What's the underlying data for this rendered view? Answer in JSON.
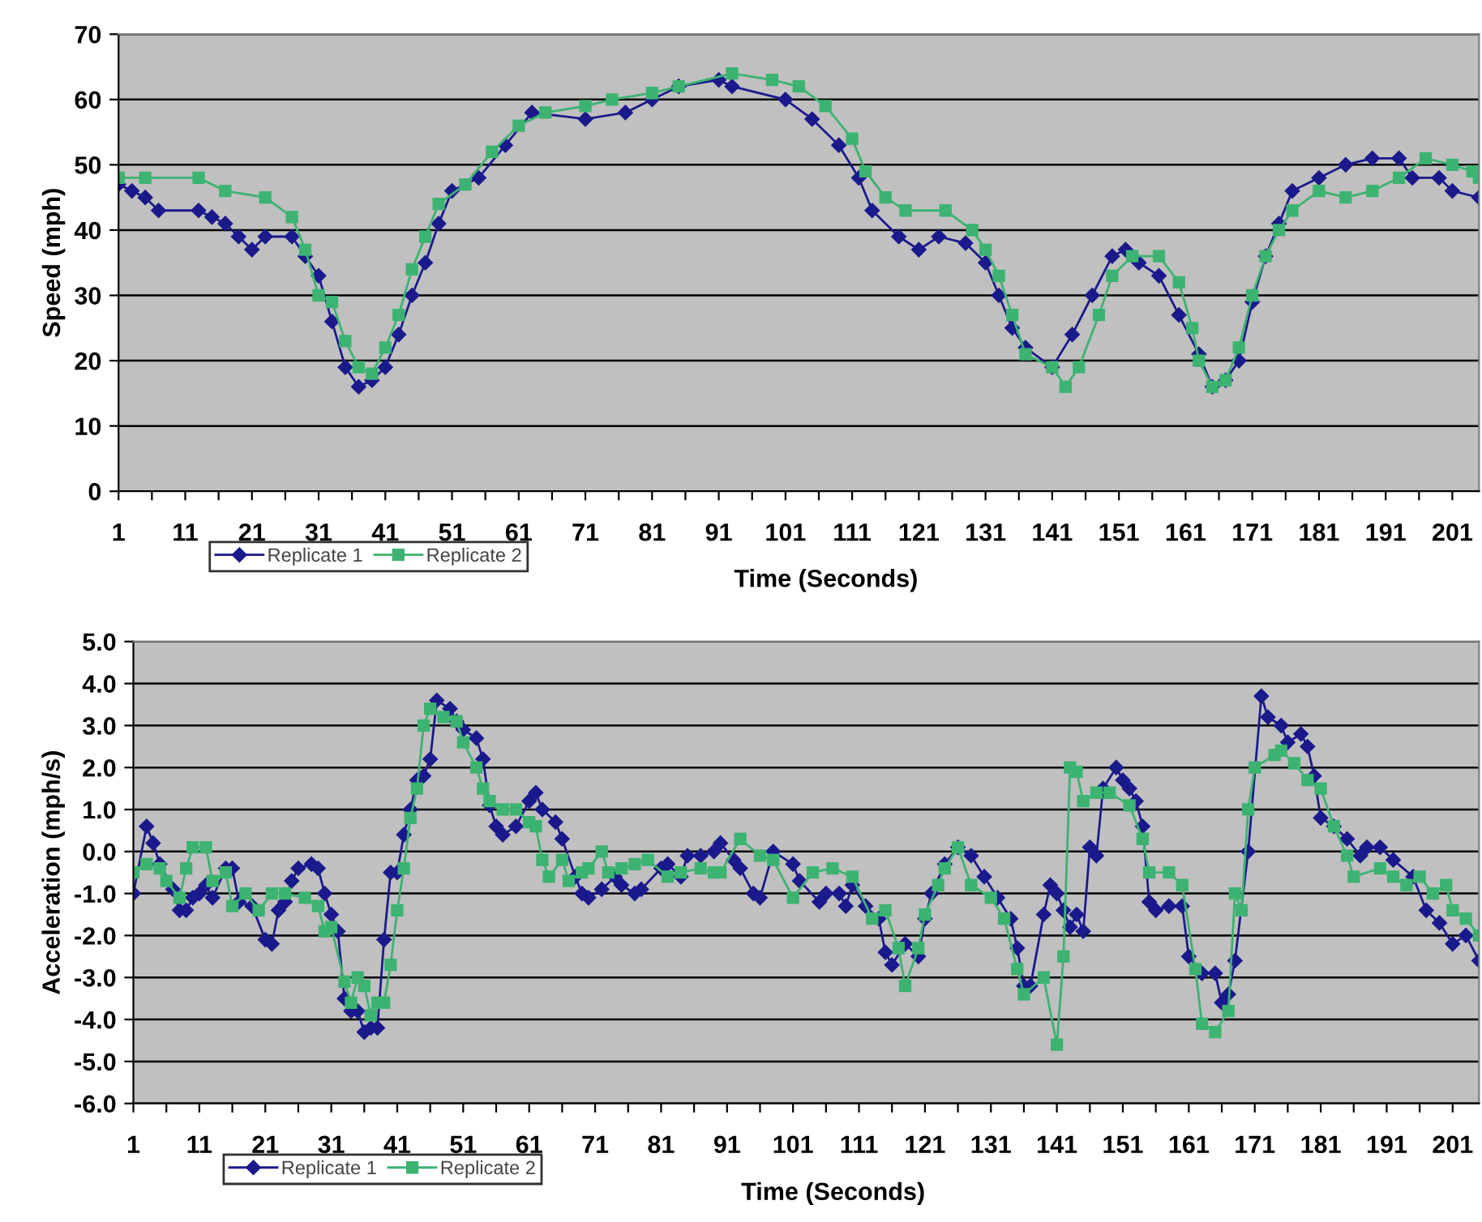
{
  "chart_data": [
    {
      "type": "line",
      "xlabel": "Time (Seconds)",
      "ylabel": "Speed (mph)",
      "xlim": [
        1,
        205
      ],
      "xticks": [
        1,
        {
          "value": 6,
          "label": null
        },
        11,
        {
          "value": 16,
          "label": null
        },
        21,
        {
          "value": 26,
          "label": null
        },
        31,
        {
          "value": 36,
          "label": null
        },
        41,
        {
          "value": 46,
          "label": null
        },
        51,
        {
          "value": 56,
          "label": null
        },
        61,
        {
          "value": 66,
          "label": null
        },
        71,
        {
          "value": 76,
          "label": null
        },
        81,
        {
          "value": 86,
          "label": null
        },
        91,
        {
          "value": 96,
          "label": null
        },
        101,
        {
          "value": 106,
          "label": null
        },
        111,
        {
          "value": 116,
          "label": null
        },
        121,
        {
          "value": 126,
          "label": null
        },
        131,
        {
          "value": 136,
          "label": null
        },
        141,
        {
          "value": 146,
          "label": null
        },
        151,
        {
          "value": 156,
          "label": null
        },
        161,
        {
          "value": 166,
          "label": null
        },
        171,
        {
          "value": 176,
          "label": null
        },
        181,
        {
          "value": 186,
          "label": null
        },
        191,
        {
          "value": 196,
          "label": null
        },
        201
      ],
      "ylim": [
        0,
        70
      ],
      "yticks": [
        0,
        10,
        20,
        30,
        40,
        50,
        60,
        70
      ],
      "grid": "y",
      "legend": "bottom left",
      "series": [
        {
          "name": "Replicate 1",
          "color": "#1a1a8c",
          "marker": "diamond",
          "x": [
            1,
            3,
            5,
            7,
            13,
            15,
            17,
            19,
            21,
            23,
            27,
            29,
            31,
            33,
            35,
            37,
            39,
            41,
            43,
            45,
            47,
            49,
            51,
            55,
            59,
            63,
            71,
            77,
            81,
            85,
            91,
            93,
            101,
            105,
            109,
            112,
            114,
            118,
            121,
            124,
            128,
            131,
            133,
            135,
            137,
            141,
            144,
            147,
            150,
            152,
            154,
            157,
            160,
            163,
            165,
            167,
            169,
            171,
            173,
            175,
            177,
            181,
            185,
            189,
            193,
            195,
            199,
            201,
            205
          ],
          "values": [
            47,
            46,
            45,
            43,
            43,
            42,
            41,
            39,
            37,
            39,
            39,
            36,
            33,
            26,
            19,
            16,
            17,
            19,
            24,
            30,
            35,
            41,
            46,
            48,
            53,
            58,
            57,
            58,
            60,
            62,
            63,
            62,
            60,
            57,
            53,
            48,
            43,
            39,
            37,
            39,
            38,
            35,
            30,
            25,
            22,
            19,
            24,
            30,
            36,
            37,
            35,
            33,
            27,
            21,
            16,
            17,
            20,
            29,
            36,
            41,
            46,
            48,
            50,
            51,
            51,
            48,
            48,
            46,
            45
          ]
        },
        {
          "name": "Replicate 2",
          "color": "#3cb371",
          "marker": "square",
          "x": [
            1,
            5,
            13,
            17,
            23,
            27,
            29,
            31,
            33,
            35,
            37,
            39,
            41,
            43,
            45,
            47,
            49,
            53,
            57,
            61,
            65,
            71,
            75,
            81,
            85,
            93,
            99,
            103,
            107,
            111,
            113,
            116,
            119,
            125,
            129,
            131,
            133,
            135,
            137,
            141,
            143,
            145,
            148,
            150,
            153,
            157,
            160,
            162,
            163,
            165,
            167,
            169,
            171,
            173,
            175,
            177,
            181,
            185,
            189,
            193,
            197,
            201,
            204,
            205
          ],
          "values": [
            48,
            48,
            48,
            46,
            45,
            42,
            37,
            30,
            29,
            23,
            19,
            18,
            22,
            27,
            34,
            39,
            44,
            47,
            52,
            56,
            58,
            59,
            60,
            61,
            62,
            64,
            63,
            62,
            59,
            54,
            49,
            45,
            43,
            43,
            40,
            37,
            33,
            27,
            21,
            19,
            16,
            19,
            27,
            33,
            36,
            36,
            32,
            25,
            20,
            16,
            17,
            22,
            30,
            36,
            40,
            43,
            46,
            45,
            46,
            48,
            51,
            50,
            49,
            48
          ]
        }
      ]
    },
    {
      "type": "line",
      "xlabel": "Time (Seconds)",
      "ylabel": "Acceleration (mph/s)",
      "xlim": [
        1,
        205
      ],
      "xticks": [
        1,
        {
          "value": 6,
          "label": null
        },
        11,
        {
          "value": 16,
          "label": null
        },
        21,
        {
          "value": 26,
          "label": null
        },
        31,
        {
          "value": 36,
          "label": null
        },
        41,
        {
          "value": 46,
          "label": null
        },
        51,
        {
          "value": 56,
          "label": null
        },
        61,
        {
          "value": 66,
          "label": null
        },
        71,
        {
          "value": 76,
          "label": null
        },
        81,
        {
          "value": 86,
          "label": null
        },
        91,
        {
          "value": 96,
          "label": null
        },
        101,
        {
          "value": 106,
          "label": null
        },
        111,
        {
          "value": 116,
          "label": null
        },
        121,
        {
          "value": 126,
          "label": null
        },
        131,
        {
          "value": 136,
          "label": null
        },
        141,
        {
          "value": 146,
          "label": null
        },
        151,
        {
          "value": 156,
          "label": null
        },
        161,
        {
          "value": 166,
          "label": null
        },
        171,
        {
          "value": 176,
          "label": null
        },
        181,
        {
          "value": 186,
          "label": null
        },
        191,
        {
          "value": 196,
          "label": null
        },
        201
      ],
      "ylim": [
        -6,
        5
      ],
      "yticks": [
        {
          "value": -6,
          "label": "-6.0"
        },
        {
          "value": -5,
          "label": "-5.0"
        },
        {
          "value": -4,
          "label": "-4.0"
        },
        {
          "value": -3,
          "label": "-3.0"
        },
        {
          "value": -2,
          "label": "-2.0"
        },
        {
          "value": -1,
          "label": "-1.0"
        },
        {
          "value": 0,
          "label": "0.0"
        },
        {
          "value": 1,
          "label": "1.0"
        },
        {
          "value": 2,
          "label": "2.0"
        },
        {
          "value": 3,
          "label": "3.0"
        },
        {
          "value": 4,
          "label": "4.0"
        },
        {
          "value": 5,
          "label": "5.0"
        }
      ],
      "grid": "y",
      "legend": "bottom left",
      "series": [
        {
          "name": "Replicate 1",
          "color": "#1a1a8c",
          "marker": "diamond",
          "x": [
            1,
            3,
            4,
            5,
            7,
            8,
            9,
            10,
            11,
            12,
            13,
            15,
            16,
            17,
            19,
            21,
            22,
            23,
            24,
            25,
            26,
            28,
            29,
            30,
            31,
            32,
            33,
            34,
            35,
            36,
            37,
            38,
            39,
            40,
            41,
            42,
            43,
            44,
            45,
            46,
            47,
            49,
            50,
            51,
            53,
            54,
            55,
            56,
            57,
            59,
            61,
            62,
            63,
            65,
            66,
            68,
            69,
            70,
            72,
            74,
            75,
            77,
            78,
            81,
            82,
            84,
            85,
            87,
            89,
            90,
            92,
            93,
            95,
            96,
            98,
            101,
            102,
            105,
            106,
            108,
            109,
            110,
            112,
            114,
            115,
            116,
            118,
            120,
            121,
            122,
            124,
            126,
            128,
            130,
            132,
            134,
            135,
            136,
            137,
            139,
            140,
            141,
            142,
            143,
            144,
            145,
            146,
            147,
            148,
            150,
            151,
            152,
            153,
            154,
            155,
            156,
            158,
            160,
            161,
            163,
            165,
            166,
            167,
            168,
            170,
            172,
            173,
            175,
            176,
            178,
            179,
            180,
            181,
            183,
            185,
            187,
            188,
            190,
            192,
            195,
            197,
            199,
            201,
            203,
            205
          ],
          "values": [
            -1.0,
            0.6,
            0.2,
            -0.3,
            -0.9,
            -1.4,
            -1.4,
            -1.1,
            -1.0,
            -0.8,
            -1.1,
            -0.4,
            -0.4,
            -1.2,
            -1.3,
            -2.1,
            -2.2,
            -1.4,
            -1.2,
            -0.7,
            -0.4,
            -0.3,
            -0.4,
            -1.0,
            -1.5,
            -1.9,
            -3.5,
            -3.8,
            -3.8,
            -4.3,
            -4.2,
            -4.2,
            -2.1,
            -0.5,
            -0.5,
            0.4,
            1.0,
            1.7,
            1.8,
            2.2,
            3.6,
            3.4,
            3.1,
            2.9,
            2.7,
            2.2,
            1.1,
            0.6,
            0.4,
            0.6,
            1.2,
            1.4,
            1.0,
            0.7,
            0.3,
            -0.6,
            -1.0,
            -1.1,
            -0.9,
            -0.6,
            -0.8,
            -1.0,
            -0.9,
            -0.4,
            -0.3,
            -0.6,
            -0.1,
            -0.1,
            0.0,
            0.2,
            -0.2,
            -0.4,
            -1.0,
            -1.1,
            0.0,
            -0.3,
            -0.7,
            -1.2,
            -1.0,
            -1.0,
            -1.3,
            -0.8,
            -1.3,
            -1.6,
            -2.4,
            -2.7,
            -2.2,
            -2.5,
            -1.6,
            -1.0,
            -0.3,
            0.1,
            -0.1,
            -0.6,
            -1.1,
            -1.6,
            -2.3,
            -3.2,
            -3.2,
            -1.5,
            -0.8,
            -1.0,
            -1.4,
            -1.8,
            -1.5,
            -1.9,
            0.1,
            -0.1,
            1.5,
            2.0,
            1.7,
            1.5,
            1.2,
            0.6,
            -1.2,
            -1.4,
            -1.3,
            -1.3,
            -2.5,
            -2.9,
            -2.9,
            -3.6,
            -3.4,
            -2.6,
            0.0,
            3.7,
            3.2,
            3.0,
            2.6,
            2.8,
            2.5,
            1.8,
            0.8,
            0.6,
            0.3,
            -0.1,
            0.1,
            0.1,
            -0.2,
            -0.6,
            -1.4,
            -1.7,
            -2.2,
            -2.0,
            -2.6
          ]
        },
        {
          "name": "Replicate 2",
          "color": "#3cb371",
          "marker": "square",
          "x": [
            1,
            3,
            5,
            6,
            8,
            9,
            10,
            12,
            13,
            15,
            16,
            18,
            20,
            22,
            24,
            27,
            29,
            30,
            31,
            33,
            34,
            35,
            36,
            37,
            38,
            39,
            40,
            41,
            42,
            43,
            44,
            45,
            46,
            48,
            50,
            51,
            53,
            54,
            55,
            57,
            59,
            61,
            62,
            63,
            64,
            66,
            67,
            69,
            70,
            72,
            73,
            75,
            77,
            79,
            82,
            84,
            87,
            89,
            90,
            93,
            96,
            98,
            101,
            104,
            107,
            110,
            113,
            115,
            117,
            118,
            120,
            121,
            123,
            124,
            126,
            128,
            131,
            133,
            135,
            136,
            139,
            141,
            142,
            143,
            144,
            145,
            147,
            149,
            152,
            154,
            155,
            158,
            160,
            162,
            163,
            165,
            167,
            168,
            169,
            170,
            171,
            174,
            175,
            177,
            179,
            181,
            183,
            185,
            186,
            190,
            192,
            194,
            196,
            198,
            200,
            201,
            203,
            205
          ],
          "values": [
            -0.5,
            -0.3,
            -0.4,
            -0.7,
            -1.1,
            -0.4,
            0.1,
            0.1,
            -0.7,
            -0.5,
            -1.3,
            -1.0,
            -1.4,
            -1.0,
            -1.0,
            -1.1,
            -1.3,
            -1.9,
            -1.8,
            -3.1,
            -3.6,
            -3.0,
            -3.2,
            -3.9,
            -3.6,
            -3.6,
            -2.7,
            -1.4,
            -0.4,
            0.8,
            1.5,
            3.0,
            3.4,
            3.2,
            3.1,
            2.6,
            2.0,
            1.5,
            1.2,
            1.0,
            1.0,
            0.7,
            0.6,
            -0.2,
            -0.6,
            -0.2,
            -0.7,
            -0.5,
            -0.4,
            0.0,
            -0.5,
            -0.4,
            -0.3,
            -0.2,
            -0.6,
            -0.5,
            -0.4,
            -0.5,
            -0.5,
            0.3,
            -0.1,
            -0.2,
            -1.1,
            -0.5,
            -0.4,
            -0.6,
            -1.6,
            -1.4,
            -2.3,
            -3.2,
            -2.3,
            -1.5,
            -0.8,
            -0.4,
            0.1,
            -0.8,
            -1.1,
            -1.6,
            -2.8,
            -3.4,
            -3.0,
            -4.6,
            -2.5,
            2.0,
            1.9,
            1.2,
            1.4,
            1.4,
            1.1,
            0.3,
            -0.5,
            -0.5,
            -0.8,
            -2.8,
            -4.1,
            -4.3,
            -3.8,
            -1.0,
            -1.4,
            1.0,
            2.0,
            2.3,
            2.4,
            2.1,
            1.7,
            1.5,
            0.6,
            -0.1,
            -0.6,
            -0.4,
            -0.6,
            -0.8,
            -0.6,
            -1.0,
            -0.8,
            -1.4,
            -1.6,
            -2.0
          ]
        }
      ]
    }
  ]
}
